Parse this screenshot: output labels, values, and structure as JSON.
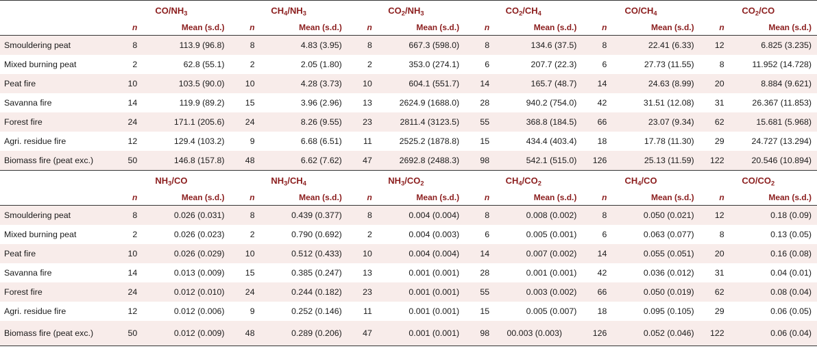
{
  "n_label": "n",
  "mean_label": "Mean (s.d.)",
  "top": {
    "headers": [
      [
        "CO/NH",
        "3",
        ""
      ],
      [
        "CH",
        "4",
        "/NH",
        "3"
      ],
      [
        "CO",
        "2",
        "/NH",
        "3"
      ],
      [
        "CO",
        "2",
        "/CH",
        "4"
      ],
      [
        "CO/CH",
        "4",
        ""
      ],
      [
        "CO",
        "2",
        "/CO"
      ]
    ],
    "rows": [
      {
        "label": "Smouldering peat",
        "cells": [
          [
            "8",
            "113.9 (96.8)"
          ],
          [
            "8",
            "4.83 (3.95)"
          ],
          [
            "8",
            "667.3 (598.0)"
          ],
          [
            "8",
            "134.6 (37.5)"
          ],
          [
            "8",
            "22.41 (6.33)"
          ],
          [
            "12",
            "6.825 (3.235)"
          ]
        ]
      },
      {
        "label": "Mixed burning peat",
        "cells": [
          [
            "2",
            "62.8 (55.1)"
          ],
          [
            "2",
            "2.05 (1.80)"
          ],
          [
            "2",
            "353.0 (274.1)"
          ],
          [
            "6",
            "207.7 (22.3)"
          ],
          [
            "6",
            "27.73 (11.55)"
          ],
          [
            "8",
            "11.952 (14.728)"
          ]
        ]
      },
      {
        "label": "Peat fire",
        "cells": [
          [
            "10",
            "103.5 (90.0)"
          ],
          [
            "10",
            "4.28 (3.73)"
          ],
          [
            "10",
            "604.1 (551.7)"
          ],
          [
            "14",
            "165.7 (48.7)"
          ],
          [
            "14",
            "24.63 (8.99)"
          ],
          [
            "20",
            "8.884 (9.621)"
          ]
        ]
      },
      {
        "label": "Savanna fire",
        "cells": [
          [
            "14",
            "119.9 (89.2)"
          ],
          [
            "15",
            "3.96 (2.96)"
          ],
          [
            "13",
            "2624.9 (1688.0)"
          ],
          [
            "28",
            "940.2 (754.0)"
          ],
          [
            "42",
            "31.51 (12.08)"
          ],
          [
            "31",
            "26.367 (11.853)"
          ]
        ]
      },
      {
        "label": "Forest fire",
        "cells": [
          [
            "24",
            "171.1 (205.6)"
          ],
          [
            "24",
            "8.26 (9.55)"
          ],
          [
            "23",
            "2811.4 (3123.5)"
          ],
          [
            "55",
            "368.8 (184.5)"
          ],
          [
            "66",
            "23.07 (9.34)"
          ],
          [
            "62",
            "15.681 (5.968)"
          ]
        ]
      },
      {
        "label": "Agri. residue fire",
        "cells": [
          [
            "12",
            "129.4 (103.2)"
          ],
          [
            "9",
            "6.68 (6.51)"
          ],
          [
            "11",
            "2525.2 (1878.8)"
          ],
          [
            "15",
            "434.4 (403.4)"
          ],
          [
            "18",
            "17.78 (11.30)"
          ],
          [
            "29",
            "24.727 (13.294)"
          ]
        ]
      },
      {
        "label": "Biomass fire (peat exc.)",
        "cells": [
          [
            "50",
            "146.8 (157.8)"
          ],
          [
            "48",
            "6.62 (7.62)"
          ],
          [
            "47",
            "2692.8 (2488.3)"
          ],
          [
            "98",
            "542.1 (515.0)"
          ],
          [
            "126",
            "25.13 (11.59)"
          ],
          [
            "122",
            "20.546 (10.894)"
          ]
        ]
      }
    ]
  },
  "bottom": {
    "headers": [
      [
        "NH",
        "3",
        "/CO"
      ],
      [
        "NH",
        "3",
        "/CH",
        "4"
      ],
      [
        "NH",
        "3",
        "/CO",
        "2"
      ],
      [
        "CH",
        "4",
        "/CO",
        "2"
      ],
      [
        "CH",
        "4",
        "/CO"
      ],
      [
        "CO/CO",
        "2",
        ""
      ]
    ],
    "rows": [
      {
        "label": "Smouldering peat",
        "cells": [
          [
            "8",
            "0.026 (0.031)"
          ],
          [
            "8",
            "0.439 (0.377)"
          ],
          [
            "8",
            "0.004 (0.004)"
          ],
          [
            "8",
            "0.008 (0.002)"
          ],
          [
            "8",
            "0.050 (0.021)"
          ],
          [
            "12",
            "0.18 (0.09)"
          ]
        ]
      },
      {
        "label": "Mixed burning peat",
        "cells": [
          [
            "2",
            "0.026 (0.023)"
          ],
          [
            "2",
            "0.790 (0.692)"
          ],
          [
            "2",
            "0.004 (0.003)"
          ],
          [
            "6",
            "0.005 (0.001)"
          ],
          [
            "6",
            "0.063 (0.077)"
          ],
          [
            "8",
            "0.13 (0.05)"
          ]
        ]
      },
      {
        "label": "Peat fire",
        "cells": [
          [
            "10",
            "0.026 (0.029)"
          ],
          [
            "10",
            "0.512 (0.433)"
          ],
          [
            "10",
            "0.004 (0.004)"
          ],
          [
            "14",
            "0.007 (0.002)"
          ],
          [
            "14",
            "0.055 (0.051)"
          ],
          [
            "20",
            "0.16 (0.08)"
          ]
        ]
      },
      {
        "label": "Savanna fire",
        "cells": [
          [
            "14",
            "0.013 (0.009)"
          ],
          [
            "15",
            "0.385 (0.247)"
          ],
          [
            "13",
            "0.001 (0.001)"
          ],
          [
            "28",
            "0.001 (0.001)"
          ],
          [
            "42",
            "0.036 (0.012)"
          ],
          [
            "31",
            "0.04 (0.01)"
          ]
        ]
      },
      {
        "label": "Forest fire",
        "cells": [
          [
            "24",
            "0.012 (0.010)"
          ],
          [
            "24",
            "0.244 (0.182)"
          ],
          [
            "23",
            "0.001 (0.001)"
          ],
          [
            "55",
            "0.003 (0.002)"
          ],
          [
            "66",
            "0.050 (0.019)"
          ],
          [
            "62",
            "0.08 (0.04)"
          ]
        ]
      },
      {
        "label": "Agri. residue fire",
        "cells": [
          [
            "12",
            "0.012 (0.006)"
          ],
          [
            "9",
            "0.252 (0.146)"
          ],
          [
            "11",
            "0.001 (0.001)"
          ],
          [
            "15",
            "0.005 (0.007)"
          ],
          [
            "18",
            "0.095 (0.105)"
          ],
          [
            "29",
            "0.06 (0.05)"
          ]
        ]
      },
      {
        "label": "Biomass fire (peat exc.)",
        "cells": [
          [
            "50",
            "0.012 (0.009)"
          ],
          [
            "48",
            "0.289 (0.206)"
          ],
          [
            "47",
            "0.001 (0.001)"
          ],
          [
            "98",
            "00.003 (0.003)"
          ],
          [
            "126",
            "0.052 (0.046)"
          ],
          [
            "122",
            "0.06 (0.04)"
          ]
        ]
      }
    ]
  }
}
